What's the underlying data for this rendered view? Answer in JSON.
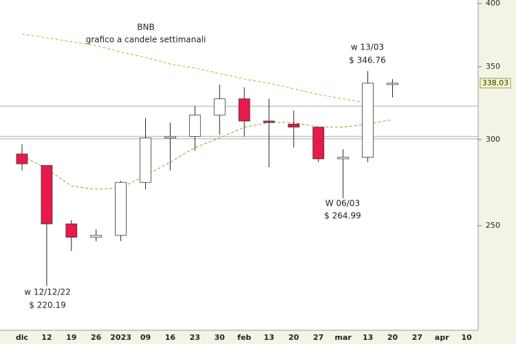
{
  "chart_data": {
    "type": "candlestick",
    "title": "BNB",
    "subtitle": "grafico a candele settimanali",
    "categories": [
      "dic",
      "12",
      "19",
      "26",
      "2023",
      "09",
      "16",
      "23",
      "30",
      "feb",
      "13",
      "20",
      "27",
      "mar",
      "13",
      "20",
      "27",
      "apr",
      "10"
    ],
    "open": [
      291,
      284,
      251,
      244,
      245,
      274,
      301,
      302,
      316,
      327,
      312,
      310,
      308,
      288,
      289,
      338,
      null,
      null,
      null
    ],
    "high": [
      297,
      284,
      253,
      248,
      275,
      314,
      311,
      322,
      337,
      335,
      327,
      319,
      308,
      294,
      346.76,
      341,
      null,
      null,
      null
    ],
    "low": [
      281,
      220.19,
      237,
      242,
      242,
      270,
      281,
      293,
      303,
      302,
      283,
      295,
      286,
      264.99,
      286,
      328,
      null,
      null,
      null
    ],
    "close": [
      285,
      251,
      244,
      245,
      274,
      301,
      302,
      316,
      327,
      312,
      311,
      308,
      288,
      289,
      338,
      338.03,
      null,
      null,
      null
    ],
    "up_color": "#ffffff",
    "down_color": "#e8194b",
    "moving_averages": [
      {
        "color": "#e0a030",
        "values": [
          375,
          372,
          369,
          366,
          361,
          357,
          352,
          349,
          345,
          341,
          338,
          334,
          330,
          327,
          324,
          null,
          null,
          null,
          null
        ]
      },
      {
        "color": "#9a9a20",
        "values": [
          290,
          282,
          272,
          270,
          271,
          278,
          286,
          295,
          301,
          308,
          311,
          311,
          308,
          308,
          310,
          313,
          null,
          null,
          null
        ]
      }
    ],
    "levels": [
      322,
      302,
      300.5
    ],
    "last_price": {
      "value": 338.03,
      "label": "338,03"
    },
    "annotations": [
      {
        "lines": [
          "w 13/03",
          "$ 346.76"
        ]
      },
      {
        "lines": [
          "W 06/03",
          "$ 264.99"
        ]
      },
      {
        "lines": [
          "w 12/12/22",
          "$ 220.19"
        ]
      }
    ],
    "ylim": [
      199,
      403
    ],
    "yticks": [
      250,
      300,
      350,
      400
    ],
    "log_scale": true
  }
}
